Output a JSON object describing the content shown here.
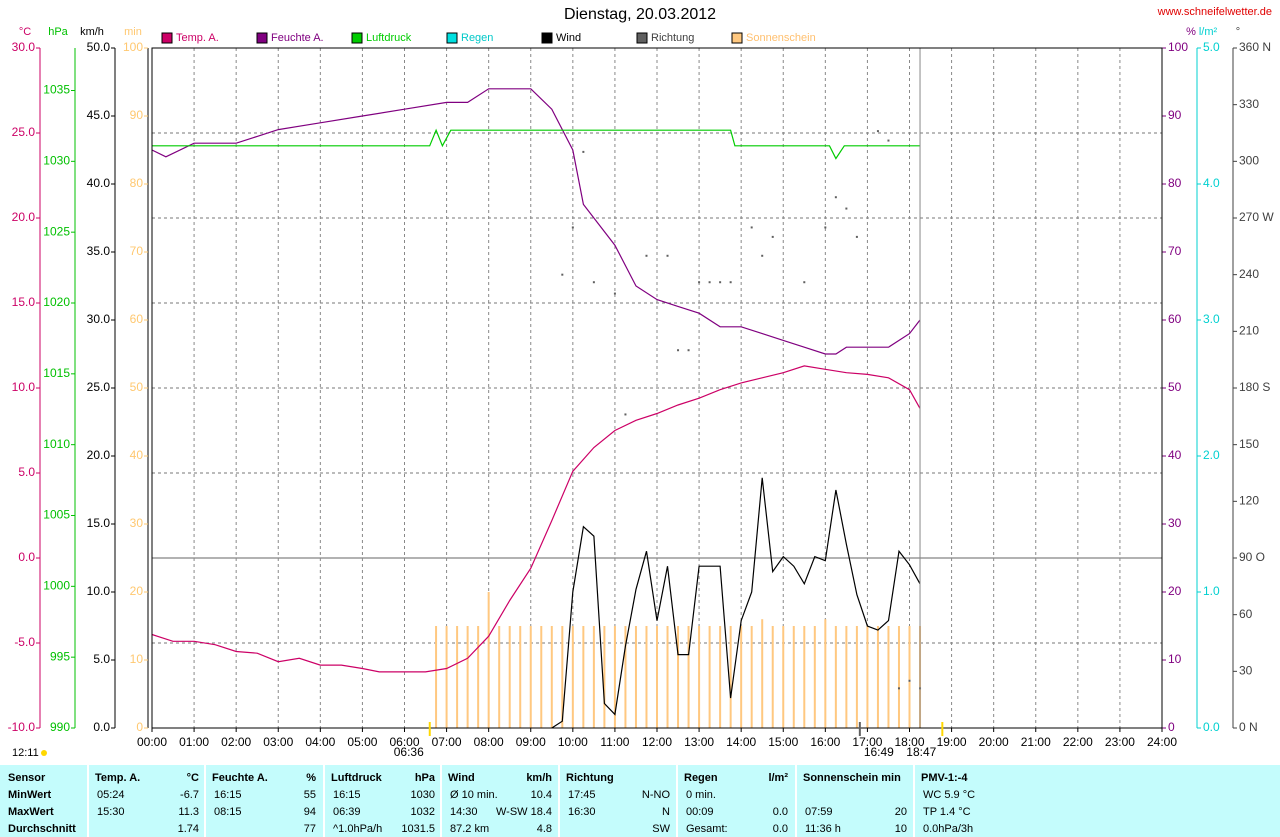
{
  "chart_data": {
    "type": "line",
    "title": "Dienstag, 20.03.2012",
    "source": "www.schneifelwetter.de",
    "grid": true,
    "xlim": [
      0,
      24
    ],
    "xticks": [
      {
        "value": 0,
        "label": "00:00"
      },
      {
        "value": 1,
        "label": "01:00"
      },
      {
        "value": 2,
        "label": "02:00"
      },
      {
        "value": 3,
        "label": "03:00"
      },
      {
        "value": 4,
        "label": "04:00"
      },
      {
        "value": 5,
        "label": "05:00"
      },
      {
        "value": 6,
        "label": "06:00"
      },
      {
        "value": 7,
        "label": "07:00"
      },
      {
        "value": 8,
        "label": "08:00"
      },
      {
        "value": 9,
        "label": "09:00"
      },
      {
        "value": 10,
        "label": "10:00"
      },
      {
        "value": 11,
        "label": "11:00"
      },
      {
        "value": 12,
        "label": "12:00"
      },
      {
        "value": 13,
        "label": "13:00"
      },
      {
        "value": 14,
        "label": "14:00"
      },
      {
        "value": 15,
        "label": "15:00"
      },
      {
        "value": 16,
        "label": "16:00"
      },
      {
        "value": 17,
        "label": "17:00"
      },
      {
        "value": 18,
        "label": "18:00"
      },
      {
        "value": 19,
        "label": "19:00"
      },
      {
        "value": 20,
        "label": "20:00"
      },
      {
        "value": 21,
        "label": "21:00"
      },
      {
        "value": 22,
        "label": "22:00"
      },
      {
        "value": 23,
        "label": "23:00"
      },
      {
        "value": 24,
        "label": "24:00"
      }
    ],
    "axes": [
      {
        "label": "°C",
        "side": "left",
        "color": "#cc0066",
        "lim": [
          -10,
          30
        ],
        "ticks": [
          {
            "value": -10,
            "label": "-10.0"
          },
          {
            "value": -5,
            "label": "-5.0"
          },
          {
            "value": 0,
            "label": "0.0"
          },
          {
            "value": 5,
            "label": "5.0"
          },
          {
            "value": 10,
            "label": "10.0"
          },
          {
            "value": 15,
            "label": "15.0"
          },
          {
            "value": 20,
            "label": "20.0"
          },
          {
            "value": 25,
            "label": "25.0"
          },
          {
            "value": 30,
            "label": "30.0"
          }
        ]
      },
      {
        "label": "hPa",
        "side": "left",
        "color": "#00c000",
        "lim": [
          990,
          1038
        ],
        "ticks": [
          990,
          995,
          1000,
          1005,
          1010,
          1015,
          1020,
          1025,
          1030,
          1035
        ]
      },
      {
        "label": "km/h",
        "side": "left",
        "color": "#000000",
        "lim": [
          0,
          50
        ],
        "ticks": [
          {
            "value": 0,
            "label": "0.0"
          },
          {
            "value": 5,
            "label": "5.0"
          },
          {
            "value": 10,
            "label": "10.0"
          },
          {
            "value": 15,
            "label": "15.0"
          },
          {
            "value": 20,
            "label": "20.0"
          },
          {
            "value": 25,
            "label": "25.0"
          },
          {
            "value": 30,
            "label": "30.0"
          },
          {
            "value": 35,
            "label": "35.0"
          },
          {
            "value": 40,
            "label": "40.0"
          },
          {
            "value": 45,
            "label": "45.0"
          },
          {
            "value": 50,
            "label": "50.0"
          }
        ]
      },
      {
        "label": "min",
        "side": "left",
        "color": "#ffc870",
        "lim": [
          0,
          100
        ],
        "ticks": [
          0,
          10,
          20,
          30,
          40,
          50,
          60,
          70,
          80,
          90,
          100
        ]
      },
      {
        "label": "%",
        "side": "right",
        "color": "#800080",
        "lim": [
          0,
          100
        ],
        "ticks": [
          0,
          10,
          20,
          30,
          40,
          50,
          60,
          70,
          80,
          90,
          100
        ]
      },
      {
        "label": "l/m²",
        "side": "right",
        "color": "#00d0d0",
        "lim": [
          0,
          5
        ],
        "ticks": [
          {
            "value": 0,
            "label": "0.0"
          },
          {
            "value": 1,
            "label": "1.0"
          },
          {
            "value": 2,
            "label": "2.0"
          },
          {
            "value": 3,
            "label": "3.0"
          },
          {
            "value": 4,
            "label": "4.0"
          },
          {
            "value": 5,
            "label": "5.0"
          }
        ]
      },
      {
        "label": "°",
        "side": "right",
        "color": "#404040",
        "lim": [
          0,
          360
        ],
        "ticks": [
          {
            "value": 0,
            "label": "0 N"
          },
          30,
          60,
          {
            "value": 90,
            "label": "90 O"
          },
          120,
          150,
          {
            "value": 180,
            "label": "180 S"
          },
          210,
          240,
          {
            "value": 270,
            "label": "270 W"
          },
          300,
          330,
          {
            "value": 360,
            "label": "360 N"
          }
        ]
      }
    ],
    "series": [
      {
        "name": "Temp. A.",
        "color": "#cc0066",
        "type": "line",
        "axis": "°C",
        "x": [
          0,
          0.5,
          1,
          1.5,
          2,
          2.5,
          3,
          3.5,
          4,
          4.5,
          5,
          5.4,
          6,
          6.5,
          7,
          7.5,
          8,
          8.5,
          9,
          9.5,
          10,
          10.5,
          11,
          11.5,
          12,
          12.5,
          13,
          13.5,
          14,
          14.5,
          15,
          15.5,
          16,
          16.5,
          17,
          17.5,
          18,
          18.25
        ],
        "values": [
          -4.5,
          -4.9,
          -4.9,
          -5.1,
          -5.5,
          -5.6,
          -6.1,
          -5.9,
          -6.3,
          -6.3,
          -6.5,
          -6.7,
          -6.7,
          -6.7,
          -6.5,
          -5.9,
          -4.6,
          -2.5,
          -0.6,
          2.2,
          5.1,
          6.5,
          7.5,
          8.1,
          8.5,
          9.0,
          9.4,
          9.9,
          10.3,
          10.6,
          10.9,
          11.3,
          11.1,
          10.9,
          10.8,
          10.6,
          9.9,
          8.8
        ]
      },
      {
        "name": "Feuchte A.",
        "color": "#800080",
        "type": "line",
        "axis": "%",
        "x": [
          0,
          0.33,
          1,
          2,
          2.5,
          3,
          4,
          5,
          6,
          7,
          7.5,
          8,
          9,
          9.5,
          10,
          10.25,
          10.5,
          11,
          11.5,
          12,
          12.5,
          13,
          13.5,
          14,
          14.5,
          15,
          15.5,
          16,
          16.25,
          16.5,
          17,
          17.5,
          18,
          18.25
        ],
        "values": [
          85,
          84,
          86,
          86,
          87,
          88,
          89,
          90,
          91,
          92,
          92,
          94,
          94,
          91,
          85,
          77,
          75,
          71,
          65,
          63,
          62,
          61,
          59,
          59,
          58,
          57,
          56,
          55,
          55,
          56,
          56,
          56,
          58,
          60
        ]
      },
      {
        "name": "Luftdruck",
        "color": "#00cc00",
        "type": "line",
        "axis": "hPa",
        "x": [
          0,
          6.6,
          6.75,
          6.9,
          7.1,
          13.75,
          13.85,
          16.1,
          16.25,
          16.45,
          18.25
        ],
        "values": [
          1031.1,
          1031.1,
          1032.2,
          1031.1,
          1032.2,
          1032.2,
          1031.1,
          1031.1,
          1030.2,
          1031.1,
          1031.1
        ]
      },
      {
        "name": "Regen",
        "color": "#00e0e0",
        "type": "bar",
        "axis": "l/m²",
        "x": [],
        "values": []
      },
      {
        "name": "Wind",
        "color": "#000000",
        "type": "line",
        "axis": "km/h",
        "x": [
          9.5,
          9.75,
          10,
          10.25,
          10.5,
          10.75,
          11,
          11.25,
          11.5,
          11.75,
          12,
          12.25,
          12.5,
          12.75,
          13,
          13.5,
          13.75,
          14,
          14.25,
          14.5,
          14.75,
          15,
          15.25,
          15.5,
          15.75,
          16,
          16.25,
          16.5,
          16.75,
          17,
          17.25,
          17.5,
          17.75,
          18,
          18.25
        ],
        "values": [
          0,
          0.5,
          10,
          14.8,
          14.1,
          1.8,
          1,
          6,
          10.2,
          13,
          7.9,
          11.9,
          5.4,
          5.4,
          11.9,
          11.9,
          2.2,
          7.9,
          10,
          18.4,
          11.5,
          12.6,
          11.9,
          10.6,
          12.6,
          12.3,
          17.5,
          13.5,
          9.8,
          7.5,
          7.2,
          7.9,
          13,
          12,
          10.6
        ]
      },
      {
        "name": "Richtung",
        "color": "#606060",
        "type": "scatter",
        "axis": "°",
        "x": [
          9.75,
          10,
          10.25,
          10.5,
          11,
          11.25,
          11.75,
          12.25,
          12.5,
          12.75,
          13,
          13.25,
          13.5,
          13.75,
          14.25,
          14.5,
          14.75,
          15.5,
          16,
          16.25,
          16.5,
          16.75,
          17.25,
          17.5,
          17.75,
          18,
          18.25
        ],
        "values": [
          240,
          265,
          305,
          236,
          230,
          166,
          250,
          250,
          200,
          200,
          236,
          236,
          236,
          236,
          265,
          250,
          260,
          236,
          265,
          281,
          275,
          260,
          316,
          311,
          21,
          25,
          21
        ]
      },
      {
        "name": "Sonnenschein",
        "color": "#ffc880",
        "type": "bar",
        "axis": "min",
        "x": [
          6.75,
          7,
          7.25,
          7.5,
          7.75,
          8,
          8.25,
          8.5,
          8.75,
          9,
          9.25,
          9.5,
          9.75,
          10,
          10.25,
          10.5,
          10.75,
          11,
          11.25,
          11.5,
          11.75,
          12,
          12.25,
          12.5,
          12.75,
          13,
          13.25,
          13.5,
          13.75,
          14,
          14.25,
          14.5,
          14.75,
          15,
          15.25,
          15.5,
          15.75,
          16,
          16.25,
          16.5,
          16.75,
          17,
          17.25,
          17.5,
          17.75,
          18,
          18.25
        ],
        "values": [
          15,
          15,
          15,
          15,
          15,
          20,
          15,
          15,
          15,
          15,
          15,
          15,
          15,
          15,
          15,
          15,
          15,
          15,
          15,
          15,
          15,
          15,
          15,
          15,
          15,
          15,
          15,
          15,
          15,
          15,
          15,
          16,
          15,
          15,
          15,
          15,
          15,
          16,
          15,
          15,
          15,
          15,
          15,
          15,
          15,
          15,
          15
        ]
      }
    ],
    "moon_label": "12:11",
    "markers": [
      {
        "label": "06:36",
        "x": 6.6
      },
      {
        "label": "16:49",
        "x": 16.82
      },
      {
        "label": "18:47",
        "x": 18.78
      }
    ]
  },
  "table": {
    "row_labels": [
      "Sensor",
      "MinWert",
      "MaxWert",
      "Durchschnitt"
    ],
    "columns": [
      {
        "name": "Temp. A.",
        "unit": "°C",
        "rows": [
          {
            "l": "05:24",
            "r": "-6.7"
          },
          {
            "l": "15:30",
            "r": "11.3"
          },
          {
            "r": "1.74"
          }
        ]
      },
      {
        "name": "Feuchte A.",
        "unit": "%",
        "rows": [
          {
            "l": "16:15",
            "r": "55"
          },
          {
            "l": "08:15",
            "r": "94"
          },
          {
            "r": "77"
          }
        ]
      },
      {
        "name": "Luftdruck",
        "unit": "hPa",
        "rows": [
          {
            "l": "16:15",
            "r": "1030"
          },
          {
            "l": "06:39",
            "r": "1032"
          },
          {
            "l": "^1.0hPa/h",
            "r": "1031.5"
          }
        ]
      },
      {
        "name": "Wind",
        "unit": "km/h",
        "rows": [
          {
            "l": "Ø 10 min.",
            "r": "10.4"
          },
          {
            "l": "14:30",
            "m": "W-SW",
            "r": "18.4"
          },
          {
            "l": "87.2 km",
            "r": "4.8"
          }
        ]
      },
      {
        "name": "Richtung",
        "rows": [
          {
            "l": "17:45",
            "r": "N-NO"
          },
          {
            "l": "16:30",
            "r": "N"
          },
          {
            "r": "SW"
          }
        ]
      },
      {
        "name": "Regen",
        "unit": "l/m²",
        "rows": [
          {
            "l": "0 min."
          },
          {
            "l": "00:09",
            "r": "0.0"
          },
          {
            "l": "Gesamt:",
            "r": "0.0"
          }
        ]
      },
      {
        "name": "Sonnenschein min",
        "rows": [
          {},
          {
            "l": "07:59",
            "r": "20"
          },
          {
            "l": "11:36 h",
            "r": "10"
          }
        ]
      },
      {
        "name": "PMV-1:-4",
        "rows": [
          {
            "l": "WC 5.9 °C"
          },
          {
            "l": "TP 1.4 °C"
          },
          {
            "l": "0.0hPa/3h"
          }
        ]
      }
    ]
  }
}
